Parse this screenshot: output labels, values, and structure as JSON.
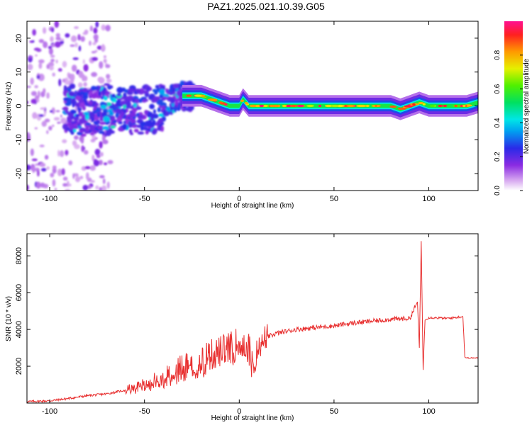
{
  "chart_data": [
    {
      "type": "heatmap",
      "title": "PAZ1.2025.021.10.39.G05",
      "xlabel": "Height of straight line (km)",
      "ylabel": "Frequency (Hz)",
      "xlim": [
        -112,
        126
      ],
      "ylim": [
        -25,
        25
      ],
      "xticks": [
        -100,
        -50,
        0,
        50,
        100
      ],
      "yticks": [
        -20,
        -10,
        0,
        10,
        20
      ],
      "colorbar": {
        "label": "Normalized spectral amplitude",
        "range": [
          0,
          1
        ],
        "ticks": [
          0.0,
          0.2,
          0.4,
          0.6,
          0.8
        ],
        "tick_labels": [
          "0.0",
          "0.2",
          "0.4",
          "0.6",
          "0.8"
        ]
      },
      "ridge_frequency": {
        "x": [
          -88,
          -80,
          -70,
          -60,
          -50,
          -45,
          -40,
          -35,
          -30,
          -25,
          -20,
          -15,
          -10,
          -5,
          0,
          2,
          5,
          10,
          20,
          40,
          60,
          80,
          85,
          90,
          95,
          100,
          110,
          120,
          126
        ],
        "y": [
          -1,
          -2,
          -1,
          -2,
          -1,
          -1,
          0,
          2,
          3,
          3,
          3,
          2,
          1,
          0,
          0,
          2,
          0,
          0,
          0,
          0,
          0,
          0,
          -1,
          0,
          1,
          0,
          0,
          0,
          1
        ]
      },
      "noise_region_x": [
        -112,
        -88
      ],
      "grid": false
    },
    {
      "type": "line",
      "xlabel": "Height of straight line (km)",
      "ylabel": "SNR (10 * v/v)",
      "xlim": [
        -112,
        126
      ],
      "ylim": [
        0,
        9200
      ],
      "xticks": [
        -100,
        -50,
        0,
        50,
        100
      ],
      "yticks": [
        2000,
        4000,
        6000,
        8000
      ],
      "color": "#e83030",
      "series": [
        {
          "x": [
            -112,
            -100,
            -90,
            -80,
            -70,
            -60,
            -50,
            -40,
            -30,
            -20,
            -10,
            -5,
            0,
            5,
            8,
            10,
            15,
            20,
            30,
            40,
            50,
            60,
            70,
            80,
            90,
            94,
            95,
            96,
            97,
            98,
            100,
            110,
            118,
            119,
            120,
            126
          ],
          "y": [
            80,
            120,
            250,
            400,
            500,
            700,
            1000,
            1400,
            2000,
            2400,
            2800,
            3000,
            3300,
            3100,
            1500,
            3300,
            3600,
            3800,
            4000,
            4100,
            4200,
            4350,
            4450,
            4550,
            4600,
            5500,
            3000,
            8800,
            1800,
            4500,
            4650,
            4600,
            4700,
            2500,
            2450,
            2450
          ]
        }
      ],
      "grid": false
    }
  ]
}
